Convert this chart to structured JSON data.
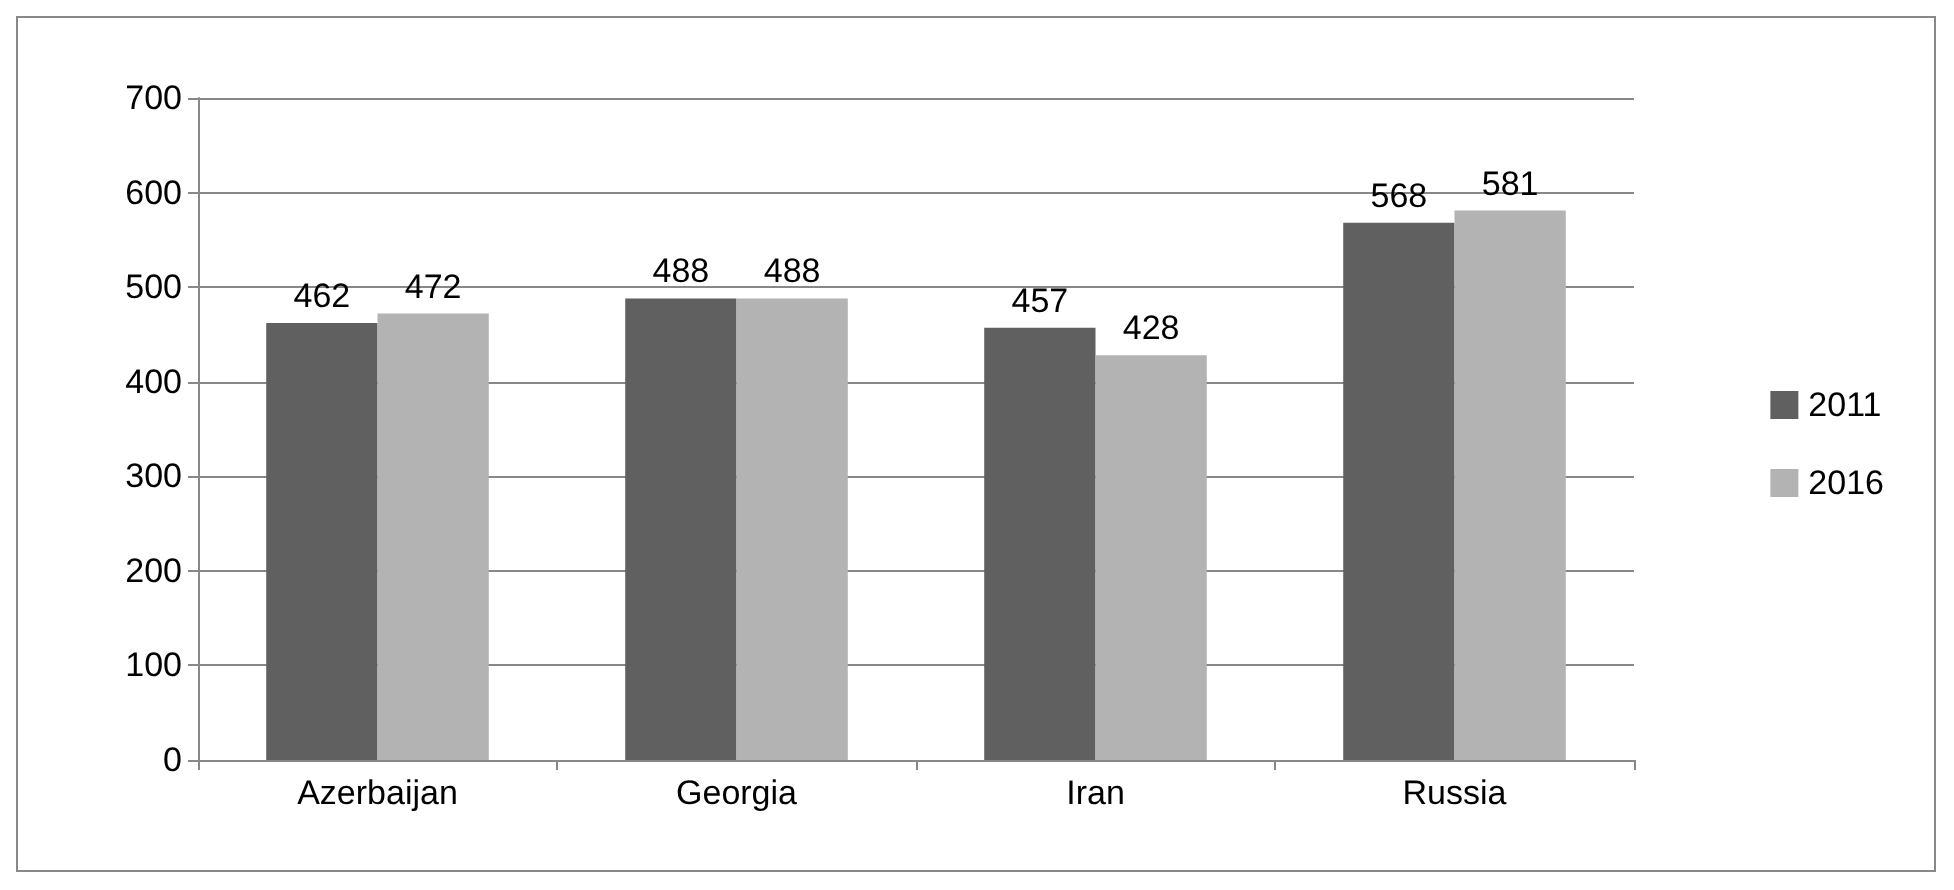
{
  "chart_data": {
    "type": "bar",
    "categories": [
      "Azerbaijan",
      "Georgia",
      "Iran",
      "Russia"
    ],
    "series": [
      {
        "name": "2011",
        "color": "#606060",
        "values": [
          462,
          488,
          457,
          568
        ]
      },
      {
        "name": "2016",
        "color": "#b3b3b3",
        "values": [
          472,
          488,
          428,
          581
        ]
      }
    ],
    "ylim": [
      0,
      700
    ],
    "yticks": [
      0,
      100,
      200,
      300,
      400,
      500,
      600,
      700
    ],
    "grid": "y",
    "legend": "right",
    "data_labels": true
  }
}
